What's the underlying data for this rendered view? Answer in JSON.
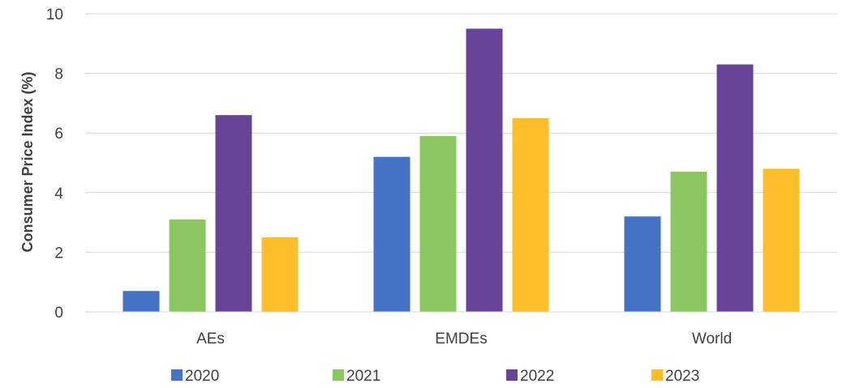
{
  "chart_data": {
    "type": "bar",
    "title": "",
    "xlabel": "",
    "ylabel": "Consumer Price Index (%)",
    "ylim": [
      0,
      10
    ],
    "yticks": [
      0,
      2,
      4,
      6,
      8,
      10
    ],
    "grid": true,
    "legend_position": "bottom",
    "categories": [
      "AEs",
      "EMDEs",
      "World"
    ],
    "series": [
      {
        "name": "2020",
        "color": "#4472C4",
        "values": [
          0.7,
          5.2,
          3.2
        ]
      },
      {
        "name": "2021",
        "color": "#8CC764",
        "values": [
          3.1,
          5.9,
          4.7
        ]
      },
      {
        "name": "2022",
        "color": "#674498",
        "values": [
          6.6,
          9.5,
          8.3
        ]
      },
      {
        "name": "2023",
        "color": "#FEBE2A",
        "values": [
          2.5,
          6.5,
          4.8
        ]
      }
    ]
  }
}
